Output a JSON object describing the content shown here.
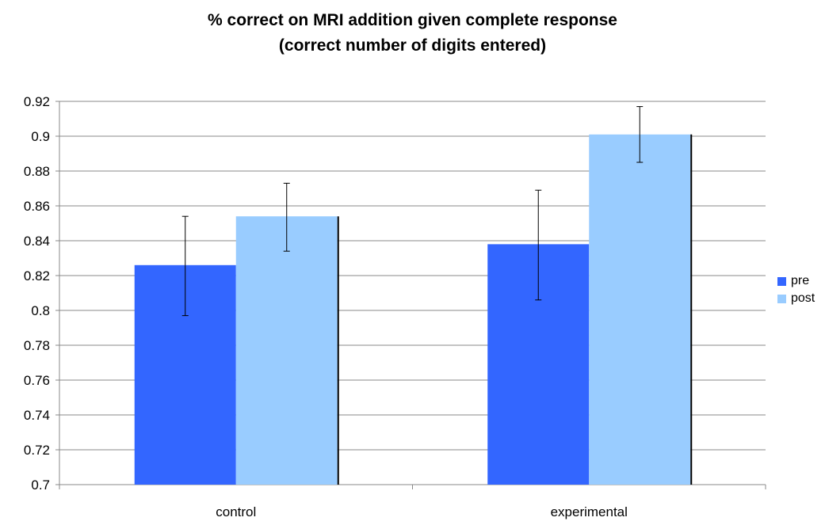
{
  "chart_data": {
    "type": "bar",
    "title_lines": [
      "% correct on MRI addition given complete response",
      "(correct number of digits entered)"
    ],
    "categories": [
      "control",
      "experimental"
    ],
    "series": [
      {
        "name": "pre",
        "color": "#3366ff",
        "values": [
          0.826,
          0.838
        ],
        "error_low": [
          0.797,
          0.806
        ],
        "error_high": [
          0.854,
          0.869
        ]
      },
      {
        "name": "post",
        "color": "#99ccff",
        "values": [
          0.854,
          0.901
        ],
        "error_low": [
          0.834,
          0.885
        ],
        "error_high": [
          0.873,
          0.917
        ]
      }
    ],
    "ylim": [
      0.7,
      0.92
    ],
    "yticks": [
      "0.92",
      "0.9",
      "0.88",
      "0.86",
      "0.84",
      "0.82",
      "0.8",
      "0.78",
      "0.76",
      "0.74",
      "0.72",
      "0.7"
    ],
    "grid": true,
    "legend_position": "right"
  }
}
